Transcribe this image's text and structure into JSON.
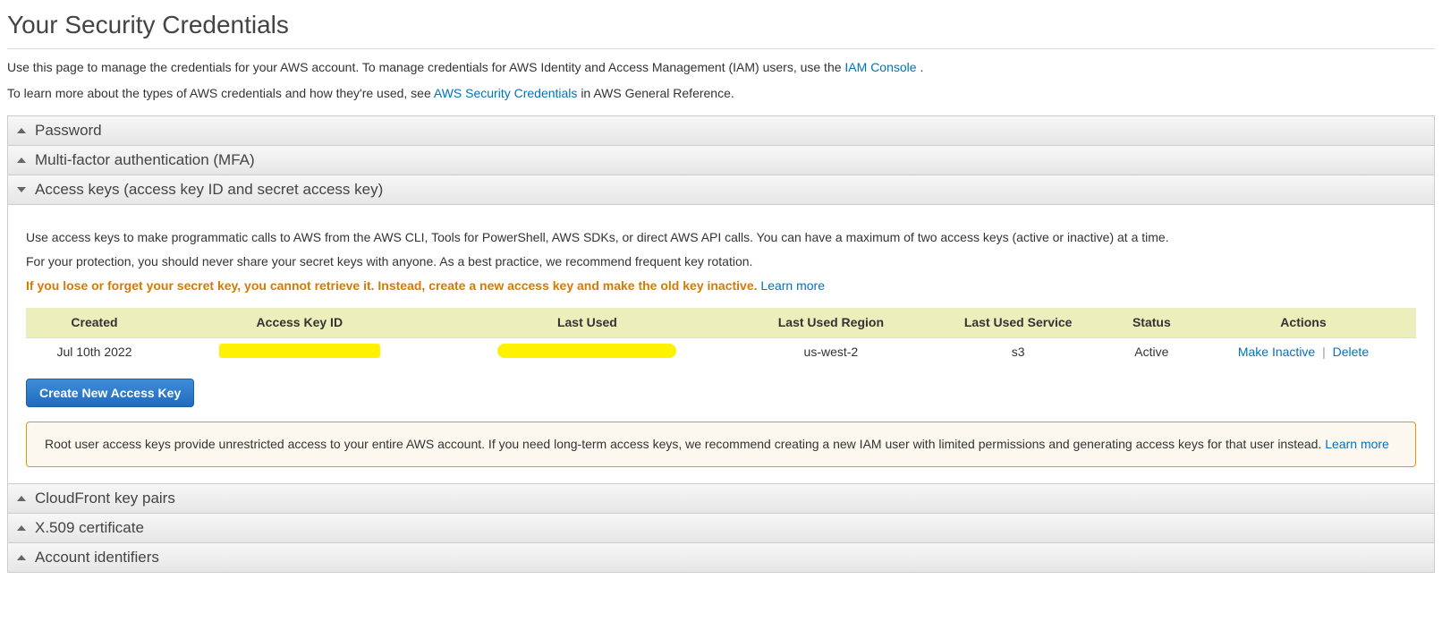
{
  "page": {
    "title": "Your Security Credentials",
    "intro1_a": "Use this page to manage the credentials for your AWS account. To manage credentials for AWS Identity and Access Management (IAM) users, use the ",
    "intro1_link": "IAM Console",
    "intro1_b": " .",
    "intro2_a": "To learn more about the types of AWS credentials and how they're used, see ",
    "intro2_link": "AWS Security Credentials",
    "intro2_b": " in AWS General Reference."
  },
  "sections": {
    "password": "Password",
    "mfa": "Multi-factor authentication (MFA)",
    "access_keys": "Access keys (access key ID and secret access key)",
    "cloudfront": "CloudFront key pairs",
    "x509": "X.509 certificate",
    "account_ids": "Account identifiers"
  },
  "access_keys_panel": {
    "p1": "Use access keys to make programmatic calls to AWS from the AWS CLI, Tools for PowerShell, AWS SDKs, or direct AWS API calls. You can have a maximum of two access keys (active or inactive) at a time.",
    "p2": "For your protection, you should never share your secret keys with anyone. As a best practice, we recommend frequent key rotation.",
    "warn": "If you lose or forget your secret key, you cannot retrieve it. Instead, create a new access key and make the old key inactive. ",
    "warn_link": "Learn more",
    "table": {
      "headers": {
        "created": "Created",
        "key_id": "Access Key ID",
        "last_used": "Last Used",
        "last_used_region": "Last Used Region",
        "last_used_service": "Last Used Service",
        "status": "Status",
        "actions": "Actions"
      },
      "row": {
        "created": "Jul 10th 2022",
        "key_id": "",
        "last_used": "",
        "last_used_region": "us-west-2",
        "last_used_service": "s3",
        "status": "Active",
        "action_inactive": "Make Inactive",
        "action_delete": "Delete"
      }
    },
    "create_button": "Create New Access Key",
    "info_box_a": "Root user access keys provide unrestricted access to your entire AWS account. If you need long-term access keys, we recommend creating a new IAM user with limited permissions and generating access keys for that user instead.  ",
    "info_box_link": "Learn more"
  },
  "colors": {
    "link": "#0073bb",
    "warn_text": "#d47b00",
    "table_header_bg": "#eceebc",
    "info_border": "#e59700",
    "info_bg": "#fdf8ef",
    "btn_top": "#3f8dd8",
    "btn_bottom": "#1f6bbf",
    "redaction": "#fff200"
  }
}
